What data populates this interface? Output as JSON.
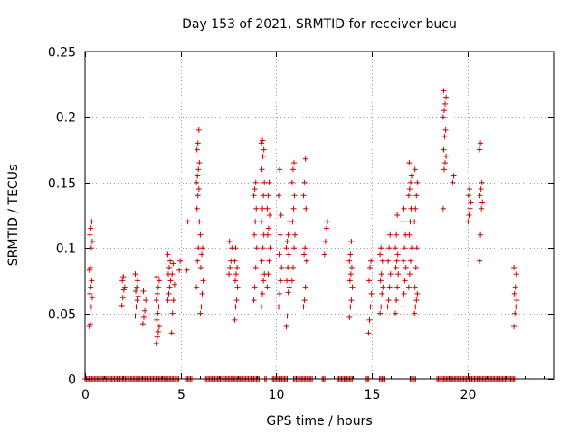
{
  "chart_data": {
    "type": "scatter",
    "title": "Day 153 of 2021, SRMTID for receiver bucu",
    "xlabel": "GPS time / hours",
    "ylabel": "SRMTID / TECUs",
    "xlim": [
      0,
      24.5
    ],
    "ylim": [
      0,
      0.25
    ],
    "xticks": [
      0,
      5,
      10,
      15,
      20
    ],
    "yticks": [
      0,
      0.05,
      0.1,
      0.15,
      0.2,
      0.25
    ],
    "xtick_labels": [
      "0",
      "5",
      "10",
      "15",
      "20"
    ],
    "ytick_labels": [
      "0",
      "0.05",
      "0.1",
      "0.15",
      "0.2",
      "0.25"
    ],
    "grid": true,
    "marker": "plus",
    "color": "#cc0000",
    "series": [
      {
        "name": "SRMTID",
        "clusters": [
          {
            "x": 0.3,
            "y": [
              0.04,
              0.042,
              0.055,
              0.062,
              0.065,
              0.07,
              0.075,
              0.083,
              0.085,
              0.1,
              0.105,
              0.11,
              0.115,
              0.12
            ]
          },
          {
            "x": 2.0,
            "y": [
              0.056,
              0.062,
              0.068,
              0.07,
              0.075,
              0.078
            ]
          },
          {
            "x": 2.7,
            "y": [
              0.048,
              0.055,
              0.06,
              0.063,
              0.067,
              0.07,
              0.075,
              0.08
            ]
          },
          {
            "x": 3.1,
            "y": [
              0.042,
              0.047,
              0.052,
              0.06,
              0.067
            ]
          },
          {
            "x": 3.8,
            "y": [
              0.027,
              0.032,
              0.036,
              0.04,
              0.045,
              0.05,
              0.055,
              0.06,
              0.065,
              0.07,
              0.075,
              0.078
            ]
          },
          {
            "x": 4.4,
            "y": [
              0.06,
              0.065,
              0.07,
              0.075,
              0.08,
              0.085,
              0.09,
              0.095
            ]
          },
          {
            "x": 4.6,
            "y": [
              0.035,
              0.05,
              0.06,
              0.072,
              0.08,
              0.088
            ]
          },
          {
            "x": 5.0,
            "y": [
              0.083,
              0.09
            ]
          },
          {
            "x": 5.4,
            "y": [
              0.083,
              0.12
            ]
          },
          {
            "x": 5.9,
            "y": [
              0.07,
              0.09,
              0.1,
              0.12,
              0.13,
              0.14,
              0.145,
              0.15,
              0.155,
              0.16,
              0.165,
              0.175,
              0.18,
              0.19
            ]
          },
          {
            "x": 6.1,
            "y": [
              0.05,
              0.055,
              0.065,
              0.075,
              0.085,
              0.095,
              0.1,
              0.11
            ]
          },
          {
            "x": 7.6,
            "y": [
              0.08,
              0.085,
              0.09,
              0.1,
              0.105
            ]
          },
          {
            "x": 7.9,
            "y": [
              0.045,
              0.055,
              0.06,
              0.07,
              0.075,
              0.08,
              0.085,
              0.09,
              0.1
            ]
          },
          {
            "x": 8.9,
            "y": [
              0.06,
              0.07,
              0.085,
              0.1,
              0.11,
              0.12,
              0.13,
              0.14,
              0.145,
              0.15
            ]
          },
          {
            "x": 9.3,
            "y": [
              0.055,
              0.065,
              0.075,
              0.08,
              0.09,
              0.1,
              0.11,
              0.12,
              0.13,
              0.14,
              0.15,
              0.16,
              0.17,
              0.175,
              0.18,
              0.182
            ]
          },
          {
            "x": 9.6,
            "y": [
              0.07,
              0.08,
              0.09,
              0.1,
              0.11,
              0.115,
              0.125,
              0.13,
              0.14,
              0.15
            ]
          },
          {
            "x": 10.2,
            "y": [
              0.055,
              0.065,
              0.075,
              0.085,
              0.095,
              0.11,
              0.125,
              0.14,
              0.16
            ]
          },
          {
            "x": 10.6,
            "y": [
              0.04,
              0.048,
              0.066,
              0.07,
              0.075,
              0.085,
              0.095,
              0.1,
              0.105,
              0.11,
              0.12
            ]
          },
          {
            "x": 10.9,
            "y": [
              0.075,
              0.085,
              0.1,
              0.11,
              0.12,
              0.13,
              0.14,
              0.15,
              0.16,
              0.165
            ]
          },
          {
            "x": 11.5,
            "y": [
              0.055,
              0.06,
              0.07,
              0.09,
              0.095,
              0.1,
              0.13,
              0.14,
              0.15,
              0.168
            ]
          },
          {
            "x": 12.6,
            "y": [
              0.095,
              0.105,
              0.115,
              0.12
            ]
          },
          {
            "x": 13.9,
            "y": [
              0.047,
              0.055,
              0.06,
              0.07,
              0.075,
              0.08,
              0.085,
              0.09,
              0.095,
              0.105
            ]
          },
          {
            "x": 14.9,
            "y": [
              0.035,
              0.045,
              0.055,
              0.065,
              0.075,
              0.085,
              0.09
            ]
          },
          {
            "x": 15.5,
            "y": [
              0.05,
              0.055,
              0.065,
              0.07,
              0.075,
              0.08,
              0.09,
              0.095,
              0.1
            ]
          },
          {
            "x": 15.9,
            "y": [
              0.055,
              0.06,
              0.07,
              0.08,
              0.09,
              0.1,
              0.11
            ]
          },
          {
            "x": 16.3,
            "y": [
              0.05,
              0.06,
              0.07,
              0.08,
              0.085,
              0.09,
              0.095,
              0.1,
              0.11,
              0.125
            ]
          },
          {
            "x": 16.7,
            "y": [
              0.055,
              0.065,
              0.075,
              0.085,
              0.09,
              0.1,
              0.11,
              0.12,
              0.13
            ]
          },
          {
            "x": 17.0,
            "y": [
              0.07,
              0.08,
              0.09,
              0.1,
              0.11,
              0.12,
              0.13,
              0.14,
              0.145,
              0.15,
              0.155,
              0.165
            ]
          },
          {
            "x": 17.3,
            "y": [
              0.05,
              0.055,
              0.06,
              0.065,
              0.07,
              0.085,
              0.1,
              0.12,
              0.13,
              0.14,
              0.15,
              0.16
            ]
          },
          {
            "x": 18.8,
            "y": [
              0.13,
              0.16,
              0.165,
              0.17,
              0.175,
              0.185,
              0.19,
              0.2,
              0.205,
              0.21,
              0.215,
              0.22
            ]
          },
          {
            "x": 19.3,
            "y": [
              0.15,
              0.155
            ]
          },
          {
            "x": 20.1,
            "y": [
              0.12,
              0.125,
              0.13,
              0.135,
              0.14,
              0.145
            ]
          },
          {
            "x": 20.7,
            "y": [
              0.09,
              0.11,
              0.13,
              0.135,
              0.14,
              0.145,
              0.15,
              0.175,
              0.18
            ]
          },
          {
            "x": 22.5,
            "y": [
              0.04,
              0.05,
              0.055,
              0.06,
              0.065,
              0.07,
              0.08,
              0.085
            ]
          }
        ],
        "zero_ranges": [
          [
            0.0,
            4.9
          ],
          [
            5.3,
            5.6
          ],
          [
            6.3,
            9.1
          ],
          [
            9.4,
            9.5
          ],
          [
            9.8,
            10.6
          ],
          [
            10.9,
            11.9
          ],
          [
            12.4,
            12.6
          ],
          [
            13.2,
            14.0
          ],
          [
            14.7,
            14.9
          ],
          [
            15.4,
            15.7
          ],
          [
            17.0,
            17.3
          ],
          [
            18.4,
            22.5
          ]
        ]
      }
    ]
  }
}
